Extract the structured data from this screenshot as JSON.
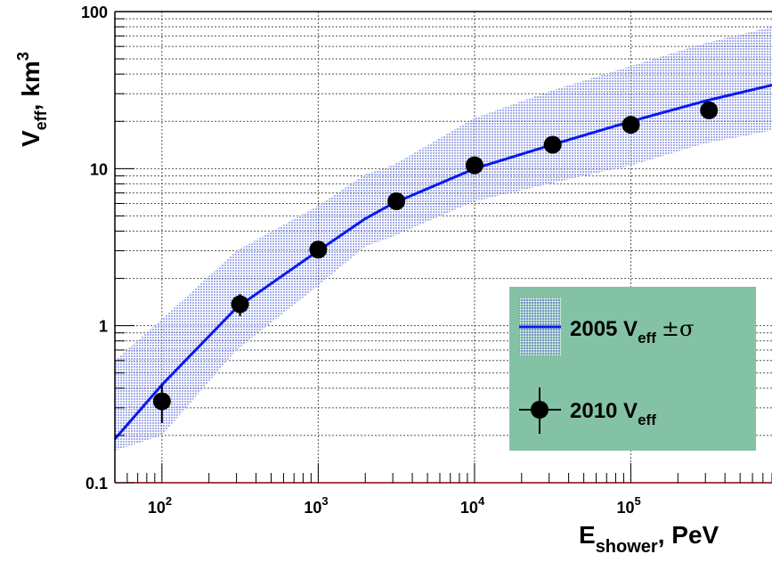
{
  "chart_data": {
    "type": "scatter",
    "title": "",
    "xlabel": {
      "main": "E",
      "sub": "shower",
      "rest": ", PeV"
    },
    "ylabel": {
      "main": "V",
      "sub": "eff",
      "rest": ", km",
      "sup": "3"
    },
    "xscale": "log",
    "yscale": "log",
    "xlim": [
      50,
      800000
    ],
    "ylim": [
      0.1,
      100
    ],
    "grid": true,
    "legend_position": "lower-right",
    "x_ticks": [
      {
        "value": 100,
        "base": "10",
        "exp": "2"
      },
      {
        "value": 1000,
        "base": "10",
        "exp": "3"
      },
      {
        "value": 10000,
        "base": "10",
        "exp": "4"
      },
      {
        "value": 100000,
        "base": "10",
        "exp": "5"
      }
    ],
    "y_ticks": [
      {
        "value": 0.1,
        "label": "0.1"
      },
      {
        "value": 1,
        "label": "1"
      },
      {
        "value": 10,
        "label": "10"
      },
      {
        "value": 100,
        "label": "100"
      }
    ],
    "series": [
      {
        "name": "2005 V",
        "name_sub": "eff",
        "name_suffix": "±σ",
        "kind": "line-with-band",
        "color": "#0a1aee",
        "band_color": "#8f9ae6",
        "x": [
          50,
          100,
          300,
          1000,
          2000,
          3000,
          10000,
          30000,
          100000,
          300000,
          800000
        ],
        "y": [
          0.19,
          0.42,
          1.3,
          3.0,
          4.8,
          6.0,
          10.0,
          14.0,
          20.0,
          27.0,
          34.0
        ],
        "y_low": [
          0.16,
          0.2,
          0.7,
          1.8,
          3.2,
          3.7,
          6.2,
          8.0,
          10.5,
          14.5,
          17.5
        ],
        "y_high": [
          0.6,
          1.1,
          3.0,
          5.8,
          9.2,
          10.5,
          21.0,
          31.0,
          45.0,
          63.0,
          80.0
        ]
      },
      {
        "name": "2010 V",
        "name_sub": "eff",
        "kind": "points-with-errors",
        "color": "#000000",
        "x": [
          100,
          316,
          1000,
          3162,
          10000,
          31623,
          100000,
          316228
        ],
        "y": [
          0.33,
          1.37,
          3.05,
          6.2,
          10.5,
          14.2,
          19.0,
          23.5
        ],
        "y_err_low": [
          0.09,
          0.22,
          0.0,
          0.0,
          0.0,
          0.0,
          0.0,
          0.0
        ],
        "y_err_high": [
          0.09,
          0.22,
          0.0,
          0.0,
          0.0,
          0.0,
          0.0,
          0.0
        ]
      }
    ],
    "colors": {
      "frame": "#000000",
      "grid": "#555555",
      "legend_bg": "#84c2a5",
      "bottom_axis": "#8b0000"
    }
  }
}
